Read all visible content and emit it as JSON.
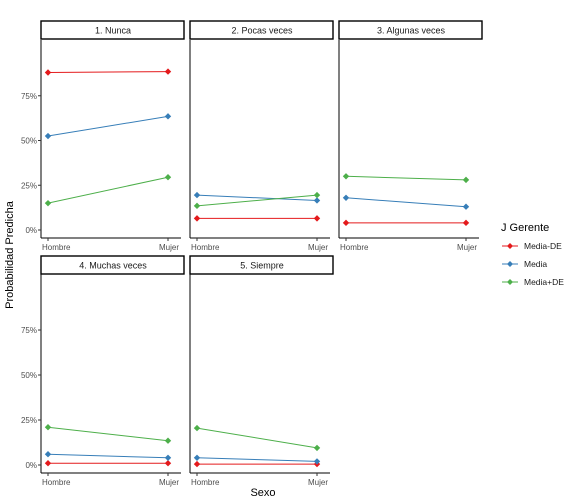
{
  "chart_data": {
    "type": "line",
    "ylabel": "Probabilidad Predicha",
    "xlabel": "Sexo",
    "categories": [
      "Hombre",
      "Mujer"
    ],
    "ylim": [
      0,
      1
    ],
    "yticks": [
      0,
      0.25,
      0.5,
      0.75
    ],
    "ytick_labels": [
      "0%",
      "25%",
      "50%",
      "75%"
    ],
    "grid": false,
    "legend": {
      "title": "J Gerente",
      "position": "right",
      "entries": [
        {
          "name": "Media-DE",
          "color": "#e41a1c"
        },
        {
          "name": "Media",
          "color": "#377eb8"
        },
        {
          "name": "Media+DE",
          "color": "#4daf4a"
        }
      ]
    },
    "panels": [
      {
        "title": "1. Nunca",
        "series": [
          {
            "name": "Media-DE",
            "values": [
              0.88,
              0.885
            ]
          },
          {
            "name": "Media",
            "values": [
              0.525,
              0.635
            ]
          },
          {
            "name": "Media+DE",
            "values": [
              0.15,
              0.295
            ]
          }
        ]
      },
      {
        "title": "2. Pocas veces",
        "series": [
          {
            "name": "Media-DE",
            "values": [
              0.065,
              0.065
            ]
          },
          {
            "name": "Media",
            "values": [
              0.195,
              0.165
            ]
          },
          {
            "name": "Media+DE",
            "values": [
              0.135,
              0.195
            ]
          }
        ]
      },
      {
        "title": "3. Algunas veces",
        "series": [
          {
            "name": "Media-DE",
            "values": [
              0.04,
              0.04
            ]
          },
          {
            "name": "Media",
            "values": [
              0.18,
              0.13
            ]
          },
          {
            "name": "Media+DE",
            "values": [
              0.3,
              0.28
            ]
          }
        ]
      },
      {
        "title": "4. Muchas veces",
        "series": [
          {
            "name": "Media-DE",
            "values": [
              0.01,
              0.01
            ]
          },
          {
            "name": "Media",
            "values": [
              0.06,
              0.04
            ]
          },
          {
            "name": "Media+DE",
            "values": [
              0.21,
              0.135
            ]
          }
        ]
      },
      {
        "title": "5. Siempre",
        "series": [
          {
            "name": "Media-DE",
            "values": [
              0.005,
              0.005
            ]
          },
          {
            "name": "Media",
            "values": [
              0.04,
              0.02
            ]
          },
          {
            "name": "Media+DE",
            "values": [
              0.205,
              0.095
            ]
          }
        ]
      }
    ]
  }
}
